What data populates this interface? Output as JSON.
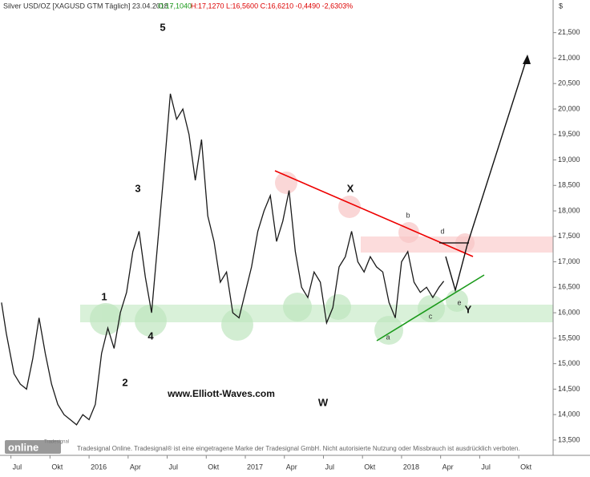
{
  "chart_data": {
    "type": "line",
    "title": "Silver USD/OZ [XAGUSD GTM  Täglich] 23.04.2018 -",
    "quote_open": "O:17,1040",
    "quote_rest": "H:17,1270 L:16,5600 C:16,6210 -0,4490 -2,6303%",
    "unit": "$",
    "series": [
      {
        "name": "Silver",
        "color": "#1a1a1a",
        "x": [
          2015.44,
          2015.47,
          2015.52,
          2015.56,
          2015.6,
          2015.64,
          2015.68,
          2015.72,
          2015.76,
          2015.8,
          2015.84,
          2015.88,
          2015.92,
          2015.96,
          2016.0,
          2016.04,
          2016.08,
          2016.12,
          2016.16,
          2016.2,
          2016.24,
          2016.28,
          2016.32,
          2016.36,
          2016.4,
          2016.44,
          2016.48,
          2016.52,
          2016.56,
          2016.6,
          2016.64,
          2016.68,
          2016.72,
          2016.76,
          2016.8,
          2016.84,
          2016.88,
          2016.92,
          2016.96,
          2017.0,
          2017.04,
          2017.08,
          2017.12,
          2017.16,
          2017.2,
          2017.24,
          2017.28,
          2017.32,
          2017.36,
          2017.4,
          2017.44,
          2017.48,
          2017.52,
          2017.56,
          2017.6,
          2017.64,
          2017.68,
          2017.72,
          2017.76,
          2017.8,
          2017.84,
          2017.88,
          2017.92,
          2017.96,
          2018.0,
          2018.04,
          2018.08,
          2018.12,
          2018.16,
          2018.2,
          2018.24,
          2018.27
        ],
        "values": [
          16200,
          15600,
          14800,
          14600,
          14500,
          15100,
          15900,
          15200,
          14600,
          14200,
          14000,
          13900,
          13800,
          14000,
          13900,
          14200,
          15200,
          15700,
          15300,
          16000,
          16400,
          17200,
          17600,
          16700,
          16000,
          17400,
          18800,
          20300,
          19800,
          20000,
          19500,
          18600,
          19400,
          17900,
          17400,
          16600,
          16800,
          16000,
          15900,
          16400,
          16900,
          17600,
          18000,
          18300,
          17400,
          17800,
          18400,
          17200,
          16500,
          16300,
          16800,
          16600,
          15800,
          16100,
          16900,
          17100,
          17600,
          17000,
          16800,
          17100,
          16900,
          16800,
          16200,
          15900,
          17000,
          17200,
          16600,
          16400,
          16500,
          16300,
          16500,
          16621
        ]
      }
    ],
    "xlim": [
      2015.43,
      2018.97
    ],
    "xticks": [
      {
        "value": 2015.5,
        "label": "Jul"
      },
      {
        "value": 2015.75,
        "label": "Okt"
      },
      {
        "value": 2016.0,
        "label": "2016"
      },
      {
        "value": 2016.25,
        "label": "Apr"
      },
      {
        "value": 2016.5,
        "label": "Jul"
      },
      {
        "value": 2016.75,
        "label": "Okt"
      },
      {
        "value": 2017.0,
        "label": "2017"
      },
      {
        "value": 2017.25,
        "label": "Apr"
      },
      {
        "value": 2017.5,
        "label": "Jul"
      },
      {
        "value": 2017.75,
        "label": "Okt"
      },
      {
        "value": 2018.0,
        "label": "2018"
      },
      {
        "value": 2018.25,
        "label": "Apr"
      },
      {
        "value": 2018.5,
        "label": "Jul"
      },
      {
        "value": 2018.75,
        "label": "Okt"
      }
    ],
    "ylim": [
      13200,
      21920
    ],
    "yticks": [
      {
        "value": 13500,
        "label": "13,500"
      },
      {
        "value": 14000,
        "label": "14,000"
      },
      {
        "value": 14500,
        "label": "14,500"
      },
      {
        "value": 15000,
        "label": "15,000"
      },
      {
        "value": 15500,
        "label": "15,500"
      },
      {
        "value": 16000,
        "label": "16,000"
      },
      {
        "value": 16500,
        "label": "16,500"
      },
      {
        "value": 17000,
        "label": "17,000"
      },
      {
        "value": 17500,
        "label": "17,500"
      },
      {
        "value": 18000,
        "label": "18,000"
      },
      {
        "value": 18500,
        "label": "18,500"
      },
      {
        "value": 19000,
        "label": "19,000"
      },
      {
        "value": 19500,
        "label": "19,500"
      },
      {
        "value": 20000,
        "label": "20,000"
      },
      {
        "value": 20500,
        "label": "20,500"
      },
      {
        "value": 21000,
        "label": "21,000"
      },
      {
        "value": 21500,
        "label": "21,500"
      }
    ],
    "annotations": {
      "w1": "1",
      "w2": "2",
      "w3": "3",
      "w4": "4",
      "w5": "5",
      "wW": "W",
      "wX": "X",
      "wY": "Y",
      "a": "a",
      "b": "b",
      "c": "c",
      "d": "d",
      "e": "e",
      "site": "www.Elliott-Waves.com"
    },
    "logo_top": "Tradesignal",
    "logo_main": "online",
    "footer": "Tradesignal Online. Tradesignal® ist eine eingetragene Marke der Tradesignal GmbH. Nicht autorisierte Nutzung oder Missbrauch ist ausdrücklich verboten."
  }
}
